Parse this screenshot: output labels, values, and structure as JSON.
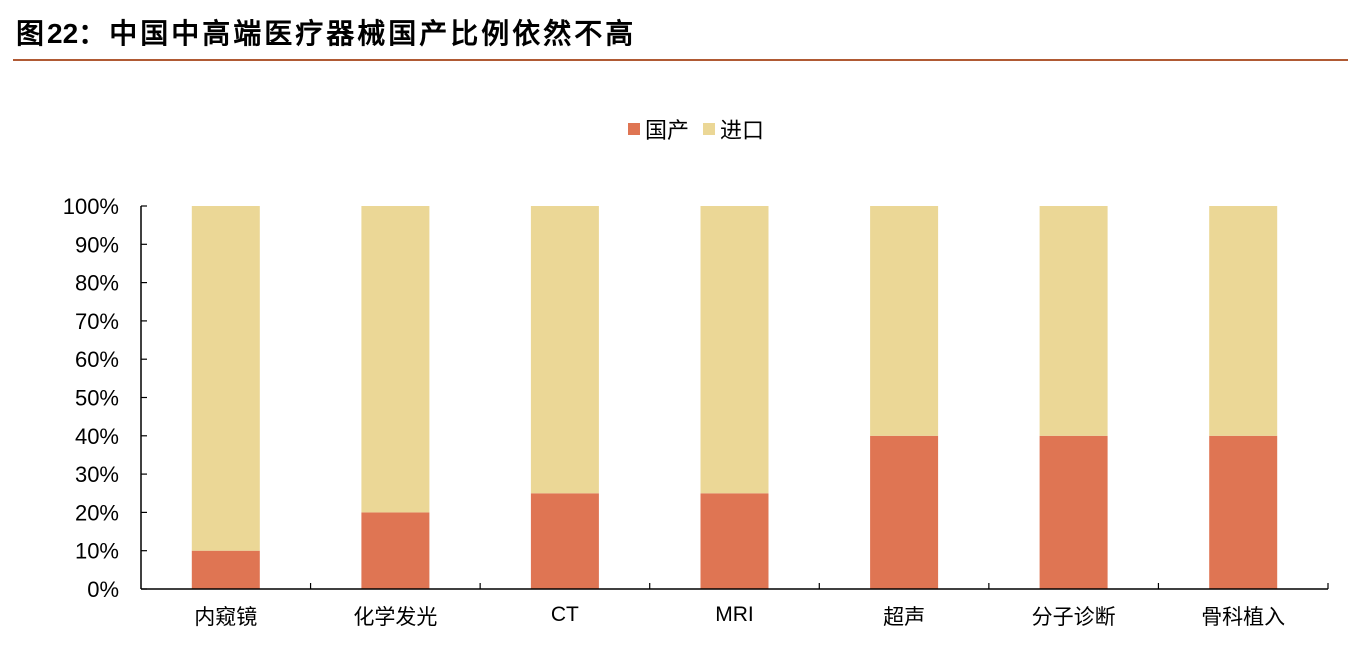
{
  "figure": {
    "prefix": "图",
    "number": "22",
    "separator": "：",
    "title_text": "中国中高端医疗器械国产比例依然不高"
  },
  "colors": {
    "domestic": "#df7553",
    "imported": "#ebd796",
    "rule": "#b05a34",
    "axis": "#000000"
  },
  "legend": {
    "items": [
      {
        "label": "国产",
        "color": "#df7553"
      },
      {
        "label": "进口",
        "color": "#ebd796"
      }
    ]
  },
  "chart_data": {
    "type": "bar",
    "stacked": true,
    "title": "图22：中国中高端医疗器械国产比例依然不高",
    "categories": [
      "内窥镜",
      "化学发光",
      "CT",
      "MRI",
      "超声",
      "分子诊断",
      "骨科植入"
    ],
    "series": [
      {
        "name": "国产",
        "color": "#df7553",
        "values": [
          10,
          20,
          25,
          25,
          40,
          40,
          40
        ]
      },
      {
        "name": "进口",
        "color": "#ebd796",
        "values": [
          90,
          80,
          75,
          75,
          60,
          60,
          60
        ]
      }
    ],
    "xlabel": "",
    "ylabel": "",
    "ylim": [
      0,
      100
    ],
    "yticks": [
      "0%",
      "10%",
      "20%",
      "30%",
      "40%",
      "50%",
      "60%",
      "70%",
      "80%",
      "90%",
      "100%"
    ],
    "grid": false,
    "legend_position": "top-center"
  }
}
